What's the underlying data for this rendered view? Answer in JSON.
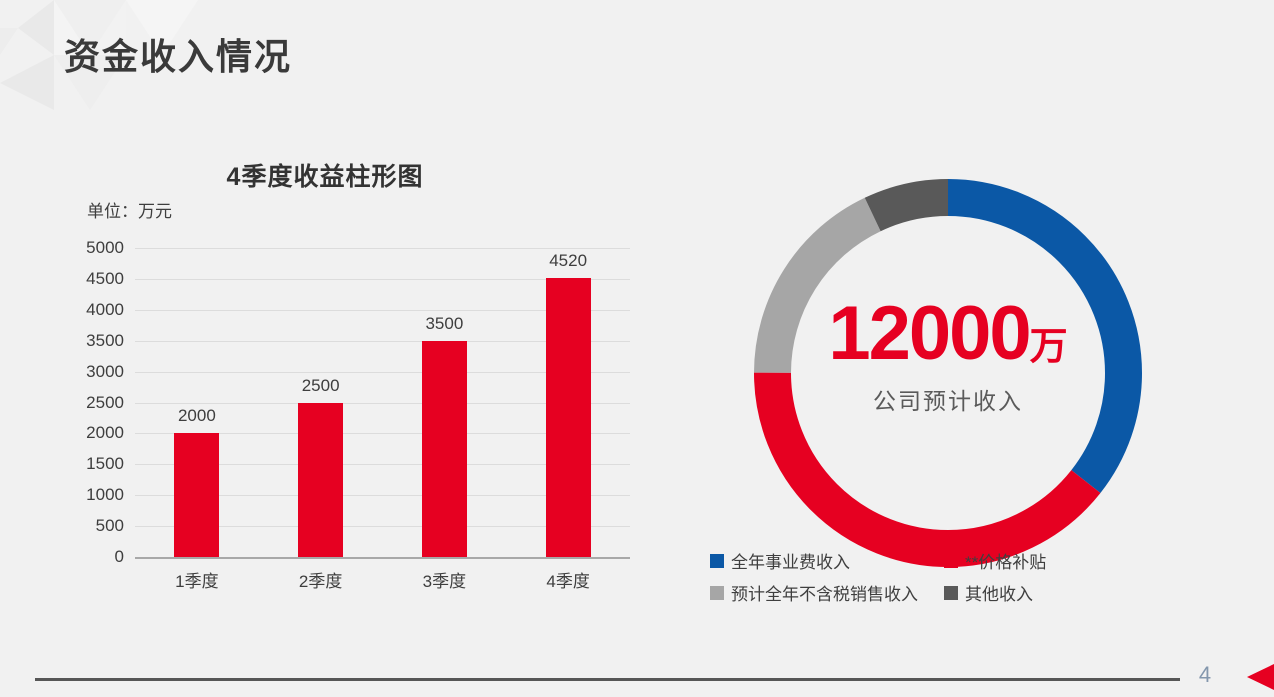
{
  "slide": {
    "title": "资金收入情况",
    "page_number": "4"
  },
  "colors": {
    "accent_red": "#e60021",
    "accent_blue": "#0b58a6",
    "light_gray": "#a6a6a6",
    "dark_gray": "#595959",
    "text_dark": "#3a3a3a",
    "page_number_gray_blue": "#8497ad"
  },
  "chart_data": [
    {
      "type": "bar",
      "title": "4季度收益柱形图",
      "unit_label": "单位：万元",
      "categories": [
        "1季度",
        "2季度",
        "3季度",
        "4季度"
      ],
      "values": [
        2000,
        2500,
        3500,
        4520
      ],
      "ylim": [
        0,
        5000
      ],
      "yticks": [
        5000,
        4500,
        4000,
        3500,
        3000,
        2500,
        2000,
        1500,
        1000,
        500,
        0
      ],
      "bar_color": "#e60021",
      "grid": true,
      "data_labels": true,
      "legend_position": "none"
    },
    {
      "type": "donut",
      "center_value": "12000",
      "center_unit": "万",
      "center_label": "公司预计收入",
      "start_angle_deg": 0,
      "direction": "clockwise",
      "legend_position": "bottom",
      "segments": [
        {
          "label": "全年事业费收入",
          "color": "#0b58a6",
          "percent": 35.6
        },
        {
          "label": "**价格补贴",
          "color": "#e60021",
          "percent": 39.4
        },
        {
          "label": "预计全年不含税销售收入",
          "color": "#a6a6a6",
          "percent": 17.9
        },
        {
          "label": "其他收入",
          "color": "#595959",
          "percent": 7.1
        }
      ]
    }
  ]
}
